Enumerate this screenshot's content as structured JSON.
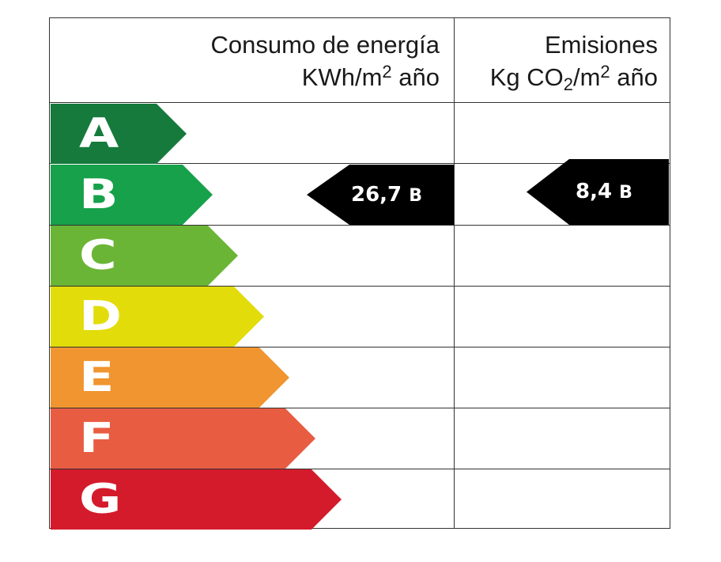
{
  "header": {
    "energy": {
      "line1": "Consumo de energía",
      "line2_prefix": "KWh/m",
      "line2_sup": "2",
      "line2_suffix": " año"
    },
    "emissions": {
      "line1": "Emisiones",
      "line2_prefix": "Kg CO",
      "line2_sub": "2",
      "line2_mid": "/m",
      "line2_sup": "2",
      "line2_suffix": " año"
    }
  },
  "classes": [
    {
      "letter": "A",
      "color": "#157a3c"
    },
    {
      "letter": "B",
      "color": "#16a14a"
    },
    {
      "letter": "C",
      "color": "#6bb536"
    },
    {
      "letter": "D",
      "color": "#e2dc0a"
    },
    {
      "letter": "E",
      "color": "#f0952f"
    },
    {
      "letter": "F",
      "color": "#e85c42"
    },
    {
      "letter": "G",
      "color": "#d41b2c"
    }
  ],
  "rating": {
    "energy": {
      "value": "26,7",
      "class": "B"
    },
    "emissions": {
      "value": "8,4",
      "class": "B"
    }
  }
}
